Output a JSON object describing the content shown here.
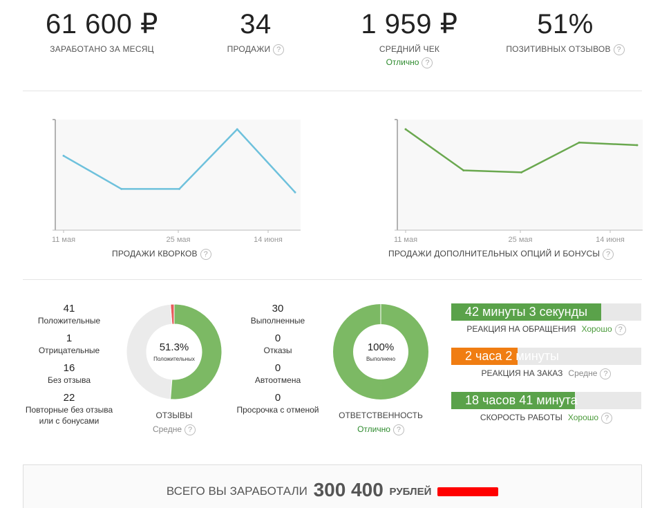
{
  "stats": [
    {
      "value": "61 600 ₽",
      "label": "ЗАРАБОТАНО ЗА МЕСЯЦ",
      "sub": ""
    },
    {
      "value": "34",
      "label": "ПРОДАЖИ",
      "sub": ""
    },
    {
      "value": "1 959 ₽",
      "label": "СРЕДНИЙ ЧЕК",
      "sub": "Отлично"
    },
    {
      "value": "51%",
      "label": "ПОЗИТИВНЫХ ОТЗЫВОВ",
      "sub": ""
    }
  ],
  "help_glyph": "?",
  "chart_data": [
    {
      "type": "line",
      "title": "ПРОДАЖИ КВОРКОВ",
      "x_ticks": [
        "11 мая",
        "25 мая",
        "14 июня"
      ],
      "series": [
        {
          "values": [
            0.6,
            0.1,
            0.1,
            1.0,
            0.05
          ],
          "color": "#6ec1dc"
        }
      ],
      "grid": false
    },
    {
      "type": "line",
      "title": "ПРОДАЖИ ДОПОЛНИТЕЛЬНЫХ ОПЦИЙ И БОНУСЫ",
      "x_ticks": [
        "11 мая",
        "25 мая",
        "14 июня"
      ],
      "series": [
        {
          "values": [
            1.0,
            0.38,
            0.35,
            0.8,
            0.76
          ],
          "color": "#6aa84f"
        }
      ],
      "grid": false
    }
  ],
  "reviews": {
    "items": [
      {
        "num": "41",
        "label": "Положительные"
      },
      {
        "num": "1",
        "label": "Отрицательные"
      },
      {
        "num": "16",
        "label": "Без отзыва"
      },
      {
        "num": "22",
        "label": "Повторные без отзыва или с бонусами"
      }
    ],
    "donut_percent": "51.3%",
    "donut_label": "Положительных",
    "caption": "ОТЗЫВЫ",
    "rating": "Средне",
    "segments": {
      "positive": 41,
      "negative": 1,
      "none": 38
    },
    "colors": {
      "positive": "#7cb964",
      "negative": "#e85c5c",
      "none": "#ebebeb"
    }
  },
  "orders": {
    "items": [
      {
        "num": "30",
        "label": "Выполненные"
      },
      {
        "num": "0",
        "label": "Отказы"
      },
      {
        "num": "0",
        "label": "Автоотмена"
      },
      {
        "num": "0",
        "label": "Просрочка с отменой"
      }
    ],
    "donut_percent": "100%",
    "donut_label": "Выполнено",
    "caption": "ОТВЕТСТВЕННОСТЬ",
    "rating": "Отлично",
    "fraction": 1.0,
    "color": "#7cb964"
  },
  "bars": [
    {
      "text": "42 минуты 3 секунды",
      "caption": "РЕАКЦИЯ НА ОБРАЩЕНИЯ",
      "rating": "Хорошо",
      "fill": 0.79,
      "color": "#5aa24a",
      "rating_color": "#4a9a3a"
    },
    {
      "text": "2 часа 2 минуты",
      "caption": "РЕАКЦИЯ НА ЗАКАЗ",
      "rating": "Средне",
      "fill": 0.35,
      "color": "#f07d12",
      "rating_color": "#888888"
    },
    {
      "text": "18 часов 41 минута",
      "caption": "СКОРОСТЬ РАБОТЫ",
      "rating": "Хорошо",
      "fill": 0.65,
      "color": "#5aa24a",
      "rating_color": "#4a9a3a"
    }
  ],
  "total": {
    "prefix": "ВСЕГО ВЫ ЗАРАБОТАЛИ",
    "amount": "300 400",
    "unit": "РУБЛЕЙ"
  }
}
